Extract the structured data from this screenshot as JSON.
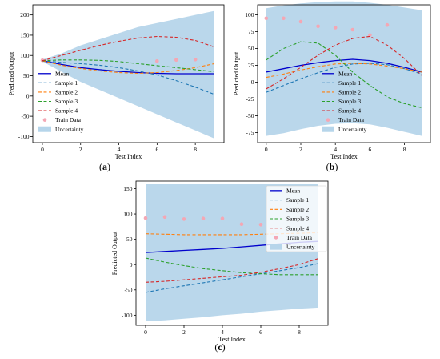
{
  "chart_data": [
    {
      "type": "line",
      "panel_label": "(a)",
      "xlabel": "Test Index",
      "ylabel": "Predicted Output",
      "xlim": [
        -0.5,
        9.5
      ],
      "ylim": [
        -115,
        225
      ],
      "xticks": [
        0,
        2,
        4,
        6,
        8
      ],
      "yticks": [
        -100,
        -50,
        0,
        50,
        100,
        150,
        200
      ],
      "grid": false,
      "legend_position": "center-left",
      "x": [
        0,
        1,
        2,
        3,
        4,
        5,
        6,
        7,
        8,
        9
      ],
      "uncertainty": {
        "name": "Uncertainty",
        "lower": [
          85,
          60,
          35,
          15,
          -5,
          -25,
          -45,
          -65,
          -85,
          -105
        ],
        "upper": [
          90,
          105,
          125,
          140,
          155,
          170,
          180,
          190,
          200,
          210
        ]
      },
      "series": [
        {
          "name": "Mean",
          "color": "#0000cc",
          "dash": "solid",
          "values": [
            87,
            78,
            70,
            65,
            61,
            58,
            56,
            55,
            55,
            55
          ]
        },
        {
          "name": "Sample 1",
          "color": "#1f77b4",
          "dash": "dashed",
          "values": [
            87,
            83,
            80,
            76,
            70,
            62,
            52,
            38,
            22,
            4
          ]
        },
        {
          "name": "Sample 2",
          "color": "#ff7f0e",
          "dash": "dashed",
          "values": [
            87,
            76,
            68,
            62,
            58,
            56,
            58,
            63,
            70,
            80
          ]
        },
        {
          "name": "Sample 3",
          "color": "#2ca02c",
          "dash": "dashed",
          "values": [
            87,
            89,
            89,
            88,
            85,
            80,
            75,
            70,
            65,
            60
          ]
        },
        {
          "name": "Sample 4",
          "color": "#d62728",
          "dash": "dashed",
          "values": [
            87,
            100,
            113,
            125,
            135,
            143,
            147,
            145,
            137,
            121
          ]
        }
      ],
      "train_data": {
        "name": "Train Data",
        "color": "#f4a7b4",
        "x": [
          0,
          6,
          7,
          8
        ],
        "y": [
          88,
          86,
          89,
          90
        ]
      }
    },
    {
      "type": "line",
      "panel_label": "(b)",
      "xlabel": "Test Index",
      "ylabel": "Predicted Output",
      "xlim": [
        -0.5,
        9.5
      ],
      "ylim": [
        -90,
        115
      ],
      "xticks": [
        0,
        2,
        4,
        6,
        8
      ],
      "yticks": [
        -75,
        -50,
        -25,
        0,
        25,
        50,
        75,
        100
      ],
      "grid": false,
      "legend_position": "lower-center",
      "x": [
        0,
        1,
        2,
        3,
        4,
        5,
        6,
        7,
        8,
        9
      ],
      "uncertainty": {
        "name": "Uncertainty",
        "lower": [
          -80,
          -76,
          -70,
          -65,
          -62,
          -61,
          -63,
          -68,
          -74,
          -80
        ],
        "upper": [
          110,
          114,
          117,
          119,
          120,
          120,
          118,
          115,
          111,
          107
        ]
      },
      "series": [
        {
          "name": "Mean",
          "color": "#0000cc",
          "dash": "solid",
          "values": [
            15,
            20,
            25,
            29,
            32,
            34,
            32,
            28,
            22,
            15
          ]
        },
        {
          "name": "Sample 1",
          "color": "#1f77b4",
          "dash": "dashed",
          "values": [
            -15,
            -5,
            5,
            14,
            22,
            27,
            28,
            26,
            20,
            12
          ]
        },
        {
          "name": "Sample 2",
          "color": "#ff7f0e",
          "dash": "dashed",
          "values": [
            7,
            12,
            18,
            23,
            27,
            28,
            27,
            24,
            20,
            15
          ]
        },
        {
          "name": "Sample 3",
          "color": "#2ca02c",
          "dash": "dashed",
          "values": [
            33,
            50,
            60,
            58,
            40,
            15,
            -5,
            -22,
            -32,
            -38
          ]
        },
        {
          "name": "Sample 4",
          "color": "#d62728",
          "dash": "dashed",
          "values": [
            -10,
            5,
            22,
            40,
            55,
            65,
            68,
            55,
            35,
            10
          ]
        }
      ],
      "train_data": {
        "name": "Train Data",
        "color": "#f4a7b4",
        "x": [
          0,
          1,
          2,
          3,
          4,
          5,
          6,
          7
        ],
        "y": [
          95,
          95,
          90,
          83,
          81,
          78,
          70,
          85
        ]
      }
    },
    {
      "type": "line",
      "panel_label": "(c)",
      "xlabel": "Test Index",
      "ylabel": "Predicted Output",
      "xlim": [
        -0.5,
        9.5
      ],
      "ylim": [
        -120,
        165
      ],
      "xticks": [
        0,
        2,
        4,
        6,
        8
      ],
      "yticks": [
        -100,
        -50,
        0,
        50,
        100,
        150
      ],
      "grid": false,
      "legend_position": "upper-right",
      "x": [
        0,
        1,
        2,
        3,
        4,
        5,
        6,
        7,
        8,
        9
      ],
      "uncertainty": {
        "name": "Uncertainty",
        "lower": [
          -112,
          -110,
          -107,
          -104,
          -100,
          -97,
          -93,
          -90,
          -87,
          -85
        ],
        "upper": [
          160,
          160,
          160,
          160,
          160,
          160,
          160,
          160,
          160,
          160
        ]
      },
      "series": [
        {
          "name": "Mean",
          "color": "#0000cc",
          "dash": "solid",
          "values": [
            24,
            26,
            28,
            30,
            32,
            35,
            38,
            41,
            44,
            46
          ]
        },
        {
          "name": "Sample 1",
          "color": "#1f77b4",
          "dash": "dashed",
          "values": [
            -55,
            -48,
            -42,
            -36,
            -30,
            -24,
            -18,
            -12,
            -6,
            2
          ]
        },
        {
          "name": "Sample 2",
          "color": "#ff7f0e",
          "dash": "dashed",
          "values": [
            61,
            60,
            59,
            59,
            59,
            59,
            60,
            61,
            62,
            63
          ]
        },
        {
          "name": "Sample 3",
          "color": "#2ca02c",
          "dash": "dashed",
          "values": [
            13,
            5,
            -2,
            -8,
            -12,
            -16,
            -18,
            -20,
            -20,
            -20
          ]
        },
        {
          "name": "Sample 4",
          "color": "#d62728",
          "dash": "dashed",
          "values": [
            -35,
            -33,
            -30,
            -27,
            -24,
            -21,
            -15,
            -8,
            0,
            12
          ]
        }
      ],
      "train_data": {
        "name": "Train Data",
        "color": "#f4a7b4",
        "x": [
          0,
          1,
          2,
          3,
          4,
          5,
          6
        ],
        "y": [
          92,
          94,
          90,
          91,
          91,
          80,
          79
        ]
      }
    }
  ],
  "uncertainty_color": "#b6d5ea"
}
